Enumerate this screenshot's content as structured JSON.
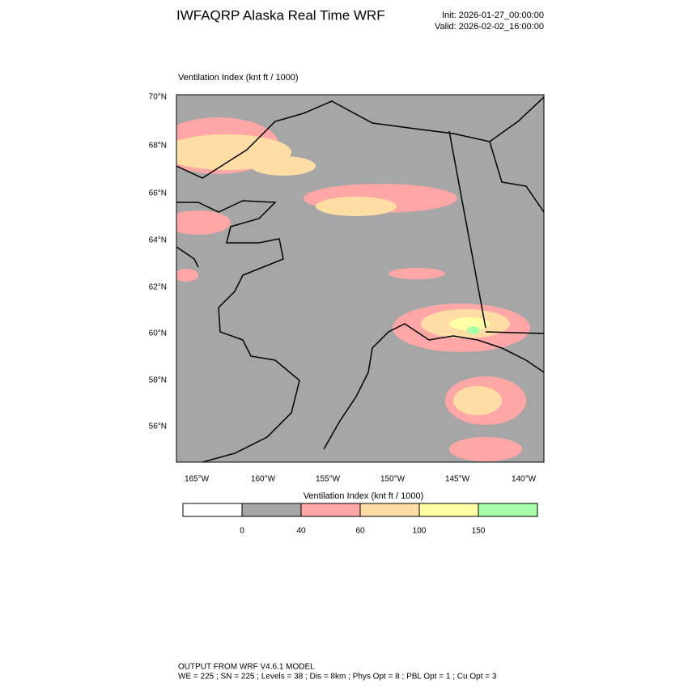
{
  "header": {
    "title": "IWFAQRP Alaska Real Time WRF",
    "init": "Init: 2026-01-27_00:00:00",
    "valid": "Valid: 2026-02-02_16:00:00"
  },
  "map": {
    "field_label": "Ventilation Index   (knt ft / 1000)",
    "lat_labels": [
      "70°N",
      "68°N",
      "66°N",
      "64°N",
      "62°N",
      "60°N",
      "58°N",
      "56°N"
    ],
    "lon_labels": [
      "165°W",
      "160°W",
      "155°W",
      "150°W",
      "145°W",
      "140°W"
    ]
  },
  "colorbar": {
    "title": "Ventilation Index  (knt ft / 1000)",
    "colors": [
      "#ffffff",
      "#a6a6a6",
      "#ffa6a6",
      "#ffdea6",
      "#ffffa6",
      "#a6ffa6"
    ],
    "labels": [
      "0",
      "40",
      "60",
      "100",
      "150"
    ]
  },
  "footer": {
    "line1": "OUTPUT FROM WRF V4.6.1 MODEL",
    "line2": "WE = 225 ; SN = 225 ; Levels = 38 ; Dis = 8km ; Phys Opt = 8 ; PBL Opt = 1 ; Cu Opt = 3"
  }
}
